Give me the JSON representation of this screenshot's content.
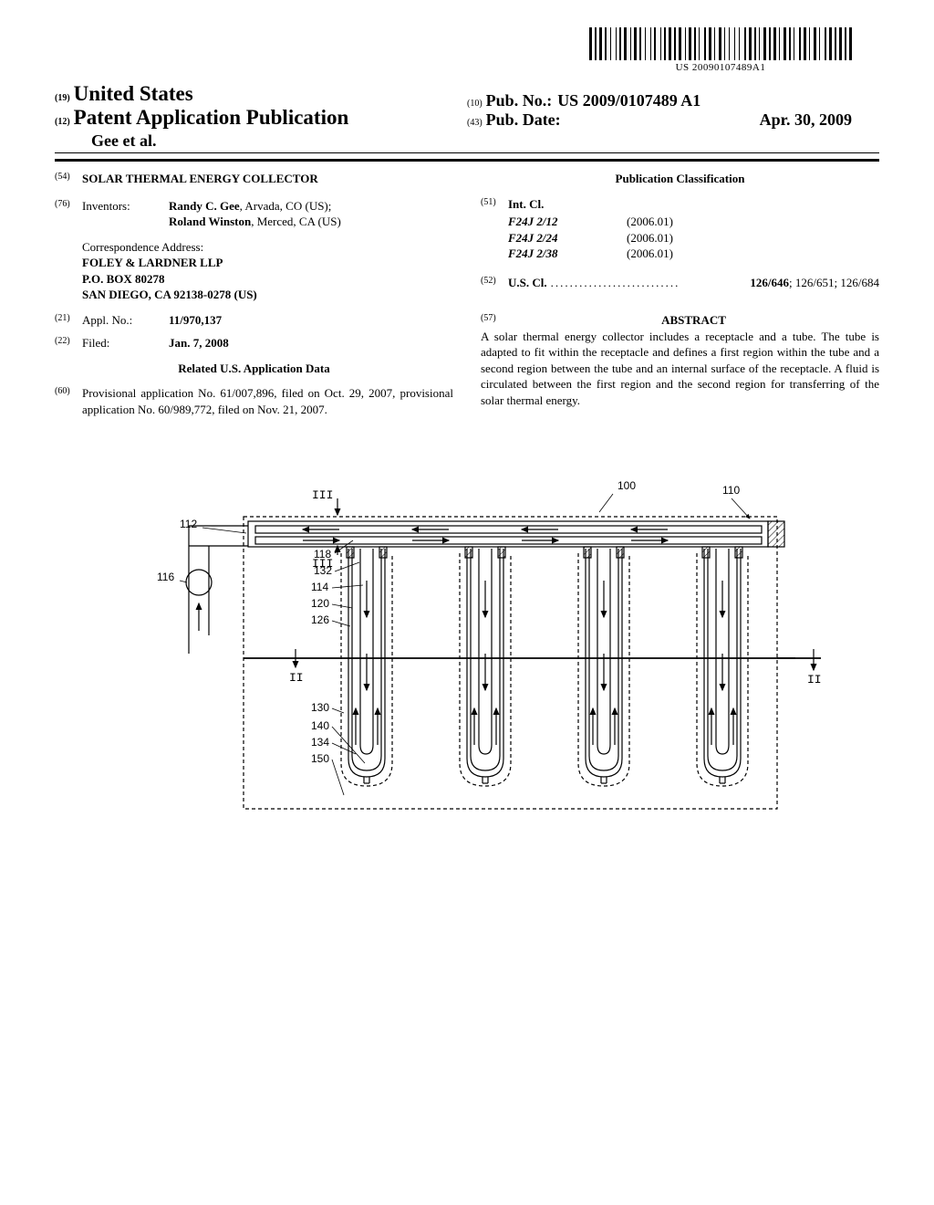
{
  "barcode": {
    "text": "US 20090107489A1",
    "bars": [
      3,
      1,
      2,
      1,
      3,
      1,
      2,
      2,
      1,
      3,
      1,
      1,
      2,
      1,
      3,
      2,
      1,
      1,
      3,
      1,
      2,
      2,
      1,
      3,
      1,
      1,
      2,
      3,
      1,
      1,
      2,
      1,
      3,
      1,
      2,
      1,
      3,
      2,
      1,
      1,
      3,
      1,
      2,
      1,
      1,
      3,
      2,
      1,
      3,
      1,
      1,
      2,
      3,
      1,
      1,
      2,
      1,
      3,
      1,
      2,
      1,
      3,
      2,
      1,
      3,
      1,
      2,
      1,
      1,
      2,
      3,
      1,
      2,
      1,
      3,
      1,
      1,
      2,
      3,
      1,
      2,
      1,
      1,
      3,
      2,
      1,
      3,
      1,
      1,
      2,
      3,
      1,
      1,
      3,
      2,
      1,
      3,
      1,
      2,
      1,
      3,
      1,
      2,
      1,
      3
    ]
  },
  "header": {
    "country_num": "(19)",
    "country": "United States",
    "pub_type_num": "(12)",
    "pub_type": "Patent Application Publication",
    "authors": "Gee et al.",
    "pub_no_num": "(10)",
    "pub_no_label": "Pub. No.:",
    "pub_no_value": "US 2009/0107489 A1",
    "pub_date_num": "(43)",
    "pub_date_label": "Pub. Date:",
    "pub_date_value": "Apr. 30, 2009"
  },
  "left": {
    "title_num": "(54)",
    "title": "SOLAR THERMAL ENERGY COLLECTOR",
    "inventors_num": "(76)",
    "inventors_label": "Inventors:",
    "inventors_value": "Randy C. Gee",
    "inventors_suffix": ", Arvada, CO (US);",
    "inventors_value2": "Roland Winston",
    "inventors_suffix2": ", Merced, CA (US)",
    "corr_label": "Correspondence Address:",
    "corr_line1": "FOLEY & LARDNER LLP",
    "corr_line2": "P.O. BOX 80278",
    "corr_line3": "SAN DIEGO, CA 92138-0278 (US)",
    "appl_num": "(21)",
    "appl_label": "Appl. No.:",
    "appl_value": "11/970,137",
    "filed_num": "(22)",
    "filed_label": "Filed:",
    "filed_value": "Jan. 7, 2008",
    "related_heading": "Related U.S. Application Data",
    "related_num": "(60)",
    "related_text": "Provisional application No. 61/007,896, filed on Oct. 29, 2007, provisional application No. 60/989,772, filed on Nov. 21, 2007."
  },
  "right": {
    "classification_heading": "Publication Classification",
    "intcl_num": "(51)",
    "intcl_label": "Int. Cl.",
    "intcl": [
      {
        "code": "F24J 2/12",
        "year": "(2006.01)"
      },
      {
        "code": "F24J 2/24",
        "year": "(2006.01)"
      },
      {
        "code": "F24J 2/38",
        "year": "(2006.01)"
      }
    ],
    "uscl_num": "(52)",
    "uscl_label": "U.S. Cl.",
    "uscl_primary": "126/646",
    "uscl_secondary": "; 126/651; 126/684",
    "abstract_num": "(57)",
    "abstract_heading": "ABSTRACT",
    "abstract_text": "A solar thermal energy collector includes a receptacle and a tube. The tube is adapted to fit within the receptacle and defines a first region within the tube and a second region between the tube and an internal surface of the receptacle. A fluid is circulated between the first region and the second region for transferring of the solar thermal energy."
  },
  "figure": {
    "labels": {
      "ref_100": "100",
      "ref_110": "110",
      "ref_112": "112",
      "ref_116": "116",
      "ref_118": "118",
      "ref_132": "132",
      "ref_114": "114",
      "ref_120": "120",
      "ref_126": "126",
      "ref_130": "130",
      "ref_140": "140",
      "ref_134": "134",
      "ref_150": "150",
      "section_II_left": "II",
      "section_II_right": "II",
      "section_III_top": "III",
      "section_III_bottom": "III"
    },
    "styling": {
      "stroke": "#000000",
      "stroke_width": 1.2,
      "dash": "4,3",
      "hatch_spacing": 4,
      "arrow_size": 6
    }
  }
}
